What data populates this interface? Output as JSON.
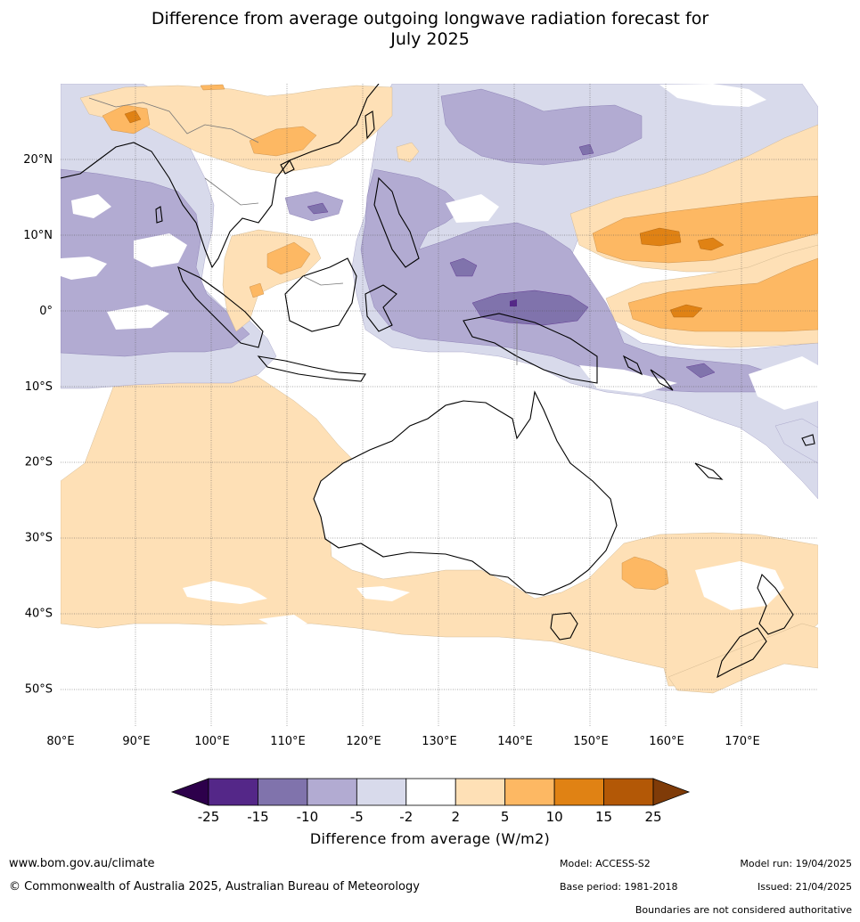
{
  "title_line1": "Difference from average outgoing longwave radiation forecast for",
  "title_line2": "July 2025",
  "map": {
    "lon_ticks": [
      "80°E",
      "90°E",
      "100°E",
      "110°E",
      "120°E",
      "130°E",
      "140°E",
      "150°E",
      "160°E",
      "170°E"
    ],
    "lat_ticks": [
      "20°N",
      "10°N",
      "0°",
      "10°S",
      "20°S",
      "30°S",
      "40°S",
      "50°S"
    ],
    "lon_values": [
      80,
      90,
      100,
      110,
      120,
      130,
      140,
      150,
      160,
      170
    ],
    "lat_values": [
      20,
      10,
      0,
      -10,
      -20,
      -30,
      -40,
      -50
    ],
    "extent": {
      "lon": [
        80,
        180
      ],
      "lat": [
        -55,
        30
      ]
    }
  },
  "legend": {
    "ticks": [
      "-25",
      "-15",
      "-10",
      "-5",
      "-2",
      "2",
      "5",
      "10",
      "15",
      "25"
    ],
    "colors": [
      "#2d004b",
      "#542788",
      "#8073ac",
      "#b2abd2",
      "#d8daeb",
      "#ffffff",
      "#fee0b6",
      "#fdb863",
      "#e08214",
      "#b35806",
      "#7f3b08"
    ],
    "label": "Difference from average (W/m2)"
  },
  "footer": {
    "website": "www.bom.gov.au/climate",
    "copyright": "© Commonwealth of Australia 2025, Australian Bureau of Meteorology",
    "model": "Model: ACCESS-S2",
    "base_period": "Base period: 1981-2018",
    "model_run": "Model run: 19/04/2025",
    "issued": "Issued: 21/04/2025",
    "disclaimer": "Boundaries are not considered authoritative"
  }
}
